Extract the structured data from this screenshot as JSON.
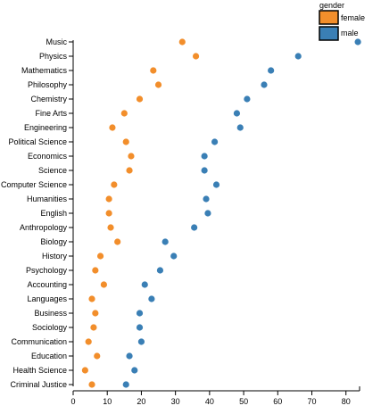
{
  "chart_data": {
    "type": "scatter",
    "title": "",
    "xlabel": "",
    "ylabel": "",
    "xlim": [
      0,
      84
    ],
    "x_ticks": [
      0,
      10,
      20,
      30,
      40,
      50,
      60,
      70,
      80
    ],
    "grid": false,
    "legend": {
      "title": "gender",
      "placement": "top-right",
      "entries": [
        {
          "name": "female",
          "color": "#f28e2b"
        },
        {
          "name": "male",
          "color": "#3a7fb5"
        }
      ]
    },
    "categories": [
      "Music",
      "Physics",
      "Mathematics",
      "Philosophy",
      "Chemistry",
      "Fine Arts",
      "Engineering",
      "Political Science",
      "Economics",
      "Science",
      "Computer Science",
      "Humanities",
      "English",
      "Anthropology",
      "Biology",
      "History",
      "Psychology",
      "Accounting",
      "Languages",
      "Business",
      "Sociology",
      "Communication",
      "Education",
      "Health Science",
      "Criminal Justice"
    ],
    "series": [
      {
        "name": "female",
        "color": "#f28e2b",
        "values": [
          32,
          36,
          23.5,
          25,
          19.5,
          15,
          11.5,
          15.5,
          17,
          16.5,
          12,
          10.5,
          10.5,
          11,
          13,
          8,
          6.5,
          9,
          5.5,
          6.5,
          6,
          4.5,
          7,
          3.5,
          5.5
        ]
      },
      {
        "name": "male",
        "color": "#3a7fb5",
        "values": [
          83.5,
          66,
          58,
          56,
          51,
          48,
          49,
          41.5,
          38.5,
          38.5,
          42,
          39,
          39.5,
          35.5,
          27,
          29.5,
          25.5,
          21,
          23,
          19.5,
          19.5,
          20,
          16.5,
          18,
          15.5
        ]
      }
    ]
  }
}
